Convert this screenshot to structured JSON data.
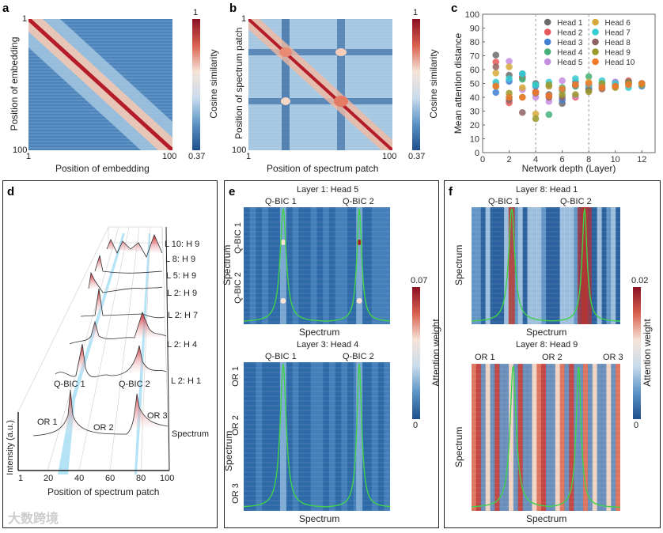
{
  "panels": {
    "a": {
      "label": "a",
      "xlabel": "Position of embedding",
      "ylabel": "Position of embedding",
      "x_ticks": [
        "1",
        "100"
      ],
      "y_ticks": [
        "1",
        "100"
      ],
      "colorbar_label": "Cosine similarity",
      "colorbar_max": "1",
      "colorbar_min": "0.37"
    },
    "b": {
      "label": "b",
      "xlabel": "Position of spectrum patch",
      "ylabel": "Position of spectrum patch",
      "x_ticks": [
        "1",
        "100"
      ],
      "y_ticks": [
        "1",
        "100"
      ],
      "colorbar_label": "Cosine similarity",
      "colorbar_max": "1",
      "colorbar_min": "0.37"
    },
    "c": {
      "label": "c"
    },
    "d": {
      "label": "d",
      "xlabel": "Position of spectrum patch",
      "ylabel": "Intensity (a.u.)",
      "x_ticks": [
        "1",
        "20",
        "40",
        "60",
        "80",
        "100"
      ],
      "rows": [
        "L 10: H 9",
        "L 8: H 9",
        "L 5: H 9",
        "L 2: H 9",
        "L 2: H 7",
        "L 2: H 4",
        "L 2: H 1",
        "Spectrum"
      ],
      "annotations": [
        "Q-BIC 1",
        "Q-BIC 2",
        "OR 1",
        "OR 2",
        "OR 3"
      ]
    },
    "e": {
      "label": "e",
      "top_title": "Layer 1: Head 5",
      "bottom_title": "Layer 3: Head 4",
      "top_col_labels": [
        "Q-BIC 1",
        "Q-BIC 2"
      ],
      "top_row_labels": [
        "Q-BIC 1",
        "Q-BIC 2"
      ],
      "bottom_col_labels": [
        "Q-BIC 1",
        "Q-BIC 2"
      ],
      "bottom_row_labels": [
        "OR 1",
        "OR 2",
        "OR 3"
      ],
      "axis_label": "Spectrum",
      "colorbar_label": "Attention weight",
      "colorbar_max": "0.07",
      "colorbar_min": "0"
    },
    "f": {
      "label": "f",
      "top_title": "Layer 8: Head 1",
      "bottom_title": "Layer 8: Head 9",
      "top_col_labels": [
        "Q-BIC 1",
        "Q-BIC 2"
      ],
      "bottom_col_labels": [
        "OR 1",
        "OR 2",
        "OR 3"
      ],
      "axis_label": "Spectrum",
      "colorbar_label": "Attention weight",
      "colorbar_max": "0.02",
      "colorbar_min": "0"
    }
  },
  "watermark": "大数跨境",
  "chart_data": [
    {
      "type": "heatmap",
      "panel": "a",
      "title": "",
      "xlabel": "Position of embedding",
      "ylabel": "Position of embedding",
      "range": [
        0.37,
        1
      ],
      "description_values": "diagonal max 1"
    },
    {
      "type": "heatmap",
      "panel": "b",
      "xlabel": "Position of spectrum patch",
      "ylabel": "Position of spectrum patch",
      "range": [
        0.37,
        1
      ]
    },
    {
      "type": "scatter",
      "panel": "c",
      "xlabel": "Network depth (Layer)",
      "ylabel": "Mean attention distance",
      "xlim": [
        0,
        13
      ],
      "ylim": [
        0,
        100
      ],
      "x_ticks": [
        0,
        2,
        4,
        6,
        8,
        10,
        12
      ],
      "y_ticks": [
        0,
        10,
        20,
        30,
        40,
        50,
        60,
        70,
        80,
        90,
        100
      ],
      "vlines": [
        4,
        8
      ],
      "legend_position": "top",
      "x": [
        1,
        2,
        3,
        4,
        5,
        6,
        7,
        8,
        9,
        10,
        11,
        12
      ],
      "series": [
        {
          "name": "Head 1",
          "color": "#6b6b6b",
          "values": [
            70.5,
            56,
            54,
            50,
            42,
            35.5,
            51,
            49,
            47,
            50,
            50,
            50
          ]
        },
        {
          "name": "Head 2",
          "color": "#e8585a",
          "values": [
            65.5,
            36,
            55,
            44,
            41,
            45,
            40,
            47,
            48,
            49,
            52,
            49
          ]
        },
        {
          "name": "Head 3",
          "color": "#3f7fd6",
          "values": [
            43.5,
            51.5,
            57,
            48,
            48,
            38,
            48,
            46,
            49,
            51,
            50,
            48
          ]
        },
        {
          "name": "Head 4",
          "color": "#45b07a",
          "values": [
            48,
            40,
            53,
            49,
            27.5,
            47,
            48,
            55,
            50,
            49,
            51,
            50
          ]
        },
        {
          "name": "Head 5",
          "color": "#c48de0",
          "values": [
            50,
            66,
            45.5,
            40,
            37,
            52,
            41,
            49,
            48,
            51,
            49,
            49
          ]
        },
        {
          "name": "Head 6",
          "color": "#d6a93a",
          "values": [
            57.5,
            62,
            47,
            28,
            48,
            46,
            49,
            51,
            47,
            48,
            50,
            50
          ]
        },
        {
          "name": "Head 7",
          "color": "#35cdd0",
          "values": [
            51,
            53.5,
            57,
            49,
            51,
            45,
            53.5,
            48,
            52,
            50,
            47,
            49
          ]
        },
        {
          "name": "Head 8",
          "color": "#8f6262",
          "values": [
            62,
            38,
            29,
            43,
            40,
            40,
            49,
            45,
            46,
            48,
            51,
            50
          ]
        },
        {
          "name": "Head 9",
          "color": "#9a9a2c",
          "values": [
            48,
            43,
            40,
            24.5,
            49,
            42,
            42,
            44,
            50,
            47,
            50,
            49
          ]
        },
        {
          "name": "Head 10",
          "color": "#f07a2c",
          "values": [
            48,
            40,
            40,
            43.5,
            41,
            46,
            49,
            50,
            47,
            48,
            49,
            50
          ]
        }
      ]
    }
  ]
}
